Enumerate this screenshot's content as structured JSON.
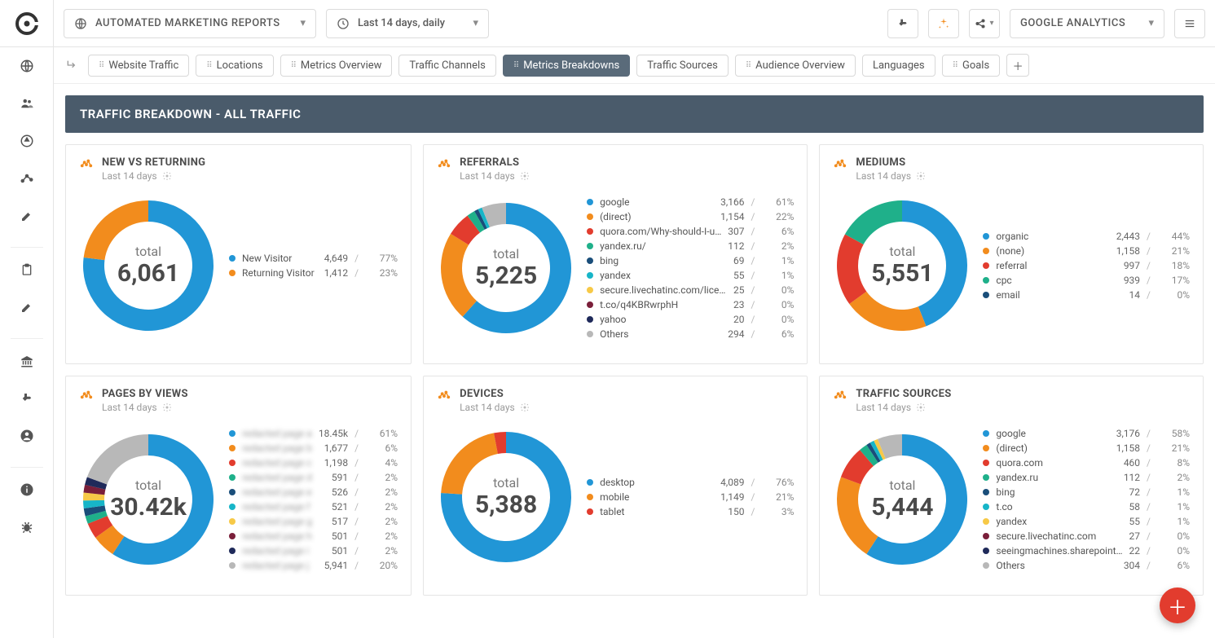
{
  "topbar": {
    "report_label": "AUTOMATED MARKETING REPORTS",
    "daterange_label": "Last 14 days, daily",
    "account_label": "GOOGLE ANALYTICS"
  },
  "tabs": [
    {
      "label": "Website Traffic",
      "dots": true,
      "active": false
    },
    {
      "label": "Locations",
      "dots": true,
      "active": false
    },
    {
      "label": "Metrics Overview",
      "dots": true,
      "active": false
    },
    {
      "label": "Traffic Channels",
      "dots": false,
      "active": false
    },
    {
      "label": "Metrics Breakdowns",
      "dots": true,
      "active": true
    },
    {
      "label": "Traffic Sources",
      "dots": false,
      "active": false
    },
    {
      "label": "Audience Overview",
      "dots": true,
      "active": false
    },
    {
      "label": "Languages",
      "dots": false,
      "active": false
    },
    {
      "label": "Goals",
      "dots": true,
      "active": false
    }
  ],
  "section_title": "TRAFFIC BREAKDOWN - ALL TRAFFIC",
  "palette": {
    "blue": "#2196d6",
    "orange": "#f28c1d",
    "red": "#e23c2e",
    "green": "#1fb08a",
    "darkblue": "#1a4e7a",
    "teal": "#17b5c8",
    "darkorange": "#c36a14",
    "yellow": "#f7c947",
    "maroon": "#7a1f3a",
    "navy": "#1f2a5a",
    "grey": "#b8b8b8"
  },
  "cards": [
    {
      "id": "new-vs-returning",
      "title": "NEW VS RETURNING",
      "subtitle": "Last 14 days",
      "total_label": "total",
      "total_value": "6,061",
      "items": [
        {
          "name": "New Visitor",
          "value": "4,649",
          "pct": "77%",
          "color": "#2196d6",
          "blur": false
        },
        {
          "name": "Returning Visitor",
          "value": "1,412",
          "pct": "23%",
          "color": "#f28c1d",
          "blur": false
        }
      ]
    },
    {
      "id": "referrals",
      "title": "REFERRALS",
      "subtitle": "Last 14 days",
      "total_label": "total",
      "total_value": "5,225",
      "items": [
        {
          "name": "google",
          "value": "3,166",
          "pct": "61%",
          "color": "#2196d6",
          "blur": false
        },
        {
          "name": "(direct)",
          "value": "1,154",
          "pct": "22%",
          "color": "#f28c1d",
          "blur": false
        },
        {
          "name": "quora.com/Why-should-I-u…",
          "value": "307",
          "pct": "6%",
          "color": "#e23c2e",
          "blur": false
        },
        {
          "name": "yandex.ru/",
          "value": "112",
          "pct": "2%",
          "color": "#1fb08a",
          "blur": false
        },
        {
          "name": "bing",
          "value": "69",
          "pct": "1%",
          "color": "#1a4e7a",
          "blur": false
        },
        {
          "name": "yandex",
          "value": "55",
          "pct": "1%",
          "color": "#17b5c8",
          "blur": false
        },
        {
          "name": "secure.livechatinc.com/lice…",
          "value": "25",
          "pct": "0%",
          "color": "#f7c947",
          "blur": false
        },
        {
          "name": "t.co/q4KBRwrphH",
          "value": "23",
          "pct": "0%",
          "color": "#7a1f3a",
          "blur": false
        },
        {
          "name": "yahoo",
          "value": "20",
          "pct": "0%",
          "color": "#1f2a5a",
          "blur": false
        },
        {
          "name": "Others",
          "value": "294",
          "pct": "6%",
          "color": "#b8b8b8",
          "blur": false
        }
      ]
    },
    {
      "id": "mediums",
      "title": "MEDIUMS",
      "subtitle": "Last 14 days",
      "total_label": "total",
      "total_value": "5,551",
      "items": [
        {
          "name": "organic",
          "value": "2,443",
          "pct": "44%",
          "color": "#2196d6",
          "blur": false
        },
        {
          "name": "(none)",
          "value": "1,158",
          "pct": "21%",
          "color": "#f28c1d",
          "blur": false
        },
        {
          "name": "referral",
          "value": "997",
          "pct": "18%",
          "color": "#e23c2e",
          "blur": false
        },
        {
          "name": "cpc",
          "value": "939",
          "pct": "17%",
          "color": "#1fb08a",
          "blur": false
        },
        {
          "name": "email",
          "value": "14",
          "pct": "0%",
          "color": "#1a4e7a",
          "blur": false
        }
      ]
    },
    {
      "id": "pages-by-views",
      "title": "PAGES BY VIEWS",
      "subtitle": "Last 14 days",
      "total_label": "total",
      "total_value": "30.42k",
      "items": [
        {
          "name": "redacted page a",
          "value": "18.45k",
          "pct": "61%",
          "color": "#2196d6",
          "blur": true
        },
        {
          "name": "redacted page b",
          "value": "1,677",
          "pct": "6%",
          "color": "#f28c1d",
          "blur": true
        },
        {
          "name": "redacted page c",
          "value": "1,198",
          "pct": "4%",
          "color": "#e23c2e",
          "blur": true
        },
        {
          "name": "redacted page d",
          "value": "591",
          "pct": "2%",
          "color": "#1fb08a",
          "blur": true
        },
        {
          "name": "redacted page e",
          "value": "526",
          "pct": "2%",
          "color": "#1a4e7a",
          "blur": true
        },
        {
          "name": "redacted page f",
          "value": "521",
          "pct": "2%",
          "color": "#17b5c8",
          "blur": true
        },
        {
          "name": "redacted page g",
          "value": "517",
          "pct": "2%",
          "color": "#f7c947",
          "blur": true
        },
        {
          "name": "redacted page h",
          "value": "501",
          "pct": "2%",
          "color": "#7a1f3a",
          "blur": true
        },
        {
          "name": "redacted page i",
          "value": "501",
          "pct": "2%",
          "color": "#1f2a5a",
          "blur": true
        },
        {
          "name": "redacted page j",
          "value": "5,941",
          "pct": "20%",
          "color": "#b8b8b8",
          "blur": true
        }
      ]
    },
    {
      "id": "devices",
      "title": "DEVICES",
      "subtitle": "Last 14 days",
      "total_label": "total",
      "total_value": "5,388",
      "items": [
        {
          "name": "desktop",
          "value": "4,089",
          "pct": "76%",
          "color": "#2196d6",
          "blur": false
        },
        {
          "name": "mobile",
          "value": "1,149",
          "pct": "21%",
          "color": "#f28c1d",
          "blur": false
        },
        {
          "name": "tablet",
          "value": "150",
          "pct": "3%",
          "color": "#e23c2e",
          "blur": false
        }
      ]
    },
    {
      "id": "traffic-sources",
      "title": "TRAFFIC SOURCES",
      "subtitle": "Last 14 days",
      "total_label": "total",
      "total_value": "5,444",
      "items": [
        {
          "name": "google",
          "value": "3,176",
          "pct": "58%",
          "color": "#2196d6",
          "blur": false
        },
        {
          "name": "(direct)",
          "value": "1,158",
          "pct": "21%",
          "color": "#f28c1d",
          "blur": false
        },
        {
          "name": "quora.com",
          "value": "460",
          "pct": "8%",
          "color": "#e23c2e",
          "blur": false
        },
        {
          "name": "yandex.ru",
          "value": "112",
          "pct": "2%",
          "color": "#1fb08a",
          "blur": false
        },
        {
          "name": "bing",
          "value": "72",
          "pct": "1%",
          "color": "#1a4e7a",
          "blur": false
        },
        {
          "name": "t.co",
          "value": "58",
          "pct": "1%",
          "color": "#17b5c8",
          "blur": false
        },
        {
          "name": "yandex",
          "value": "55",
          "pct": "1%",
          "color": "#f7c947",
          "blur": false
        },
        {
          "name": "secure.livechatinc.com",
          "value": "27",
          "pct": "0%",
          "color": "#7a1f3a",
          "blur": false
        },
        {
          "name": "seeingmachines.sharepoint…",
          "value": "22",
          "pct": "0%",
          "color": "#1f2a5a",
          "blur": false
        },
        {
          "name": "Others",
          "value": "304",
          "pct": "6%",
          "color": "#b8b8b8",
          "blur": false
        }
      ]
    }
  ]
}
